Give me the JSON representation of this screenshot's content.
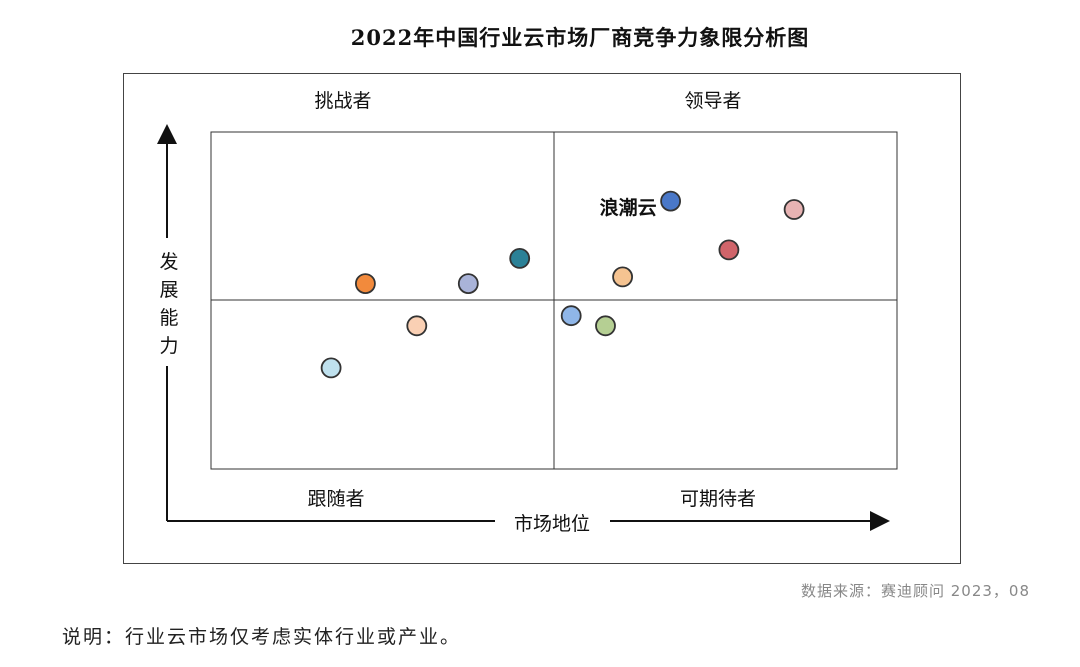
{
  "chart_data": {
    "type": "scatter",
    "title": "2022年中国行业云市场厂商竞争力象限分析图",
    "xlabel": "市场地位",
    "ylabel": "发展能力",
    "xlim": [
      0,
      100
    ],
    "ylim": [
      0,
      100
    ],
    "quadrants": {
      "top_left": "挑战者",
      "top_right": "领导者",
      "bottom_left": "跟随者",
      "bottom_right": "可期待者"
    },
    "points": [
      {
        "label": "浪潮云",
        "x": 67.0,
        "y": 79.5,
        "color": "#4a78c8"
      },
      {
        "label": "",
        "x": 85.0,
        "y": 77.0,
        "color": "#e7b3b3"
      },
      {
        "label": "",
        "x": 75.5,
        "y": 65.0,
        "color": "#d0646a"
      },
      {
        "label": "",
        "x": 60.0,
        "y": 57.0,
        "color": "#f5c391"
      },
      {
        "label": "",
        "x": 45.0,
        "y": 62.5,
        "color": "#2b8197"
      },
      {
        "label": "",
        "x": 37.5,
        "y": 55.0,
        "color": "#a9b3d8"
      },
      {
        "label": "",
        "x": 22.5,
        "y": 55.0,
        "color": "#f28a3c"
      },
      {
        "label": "",
        "x": 52.5,
        "y": 45.5,
        "color": "#8fb6e8"
      },
      {
        "label": "",
        "x": 57.5,
        "y": 42.5,
        "color": "#b5cf93"
      },
      {
        "label": "",
        "x": 30.0,
        "y": 42.5,
        "color": "#fad0b4"
      },
      {
        "label": "",
        "x": 17.5,
        "y": 30.0,
        "color": "#bfe1ee"
      }
    ]
  },
  "source_text": "数据来源：赛迪顾问  2023，08",
  "note_text": "说明：行业云市场仅考虑实体行业或产业。"
}
